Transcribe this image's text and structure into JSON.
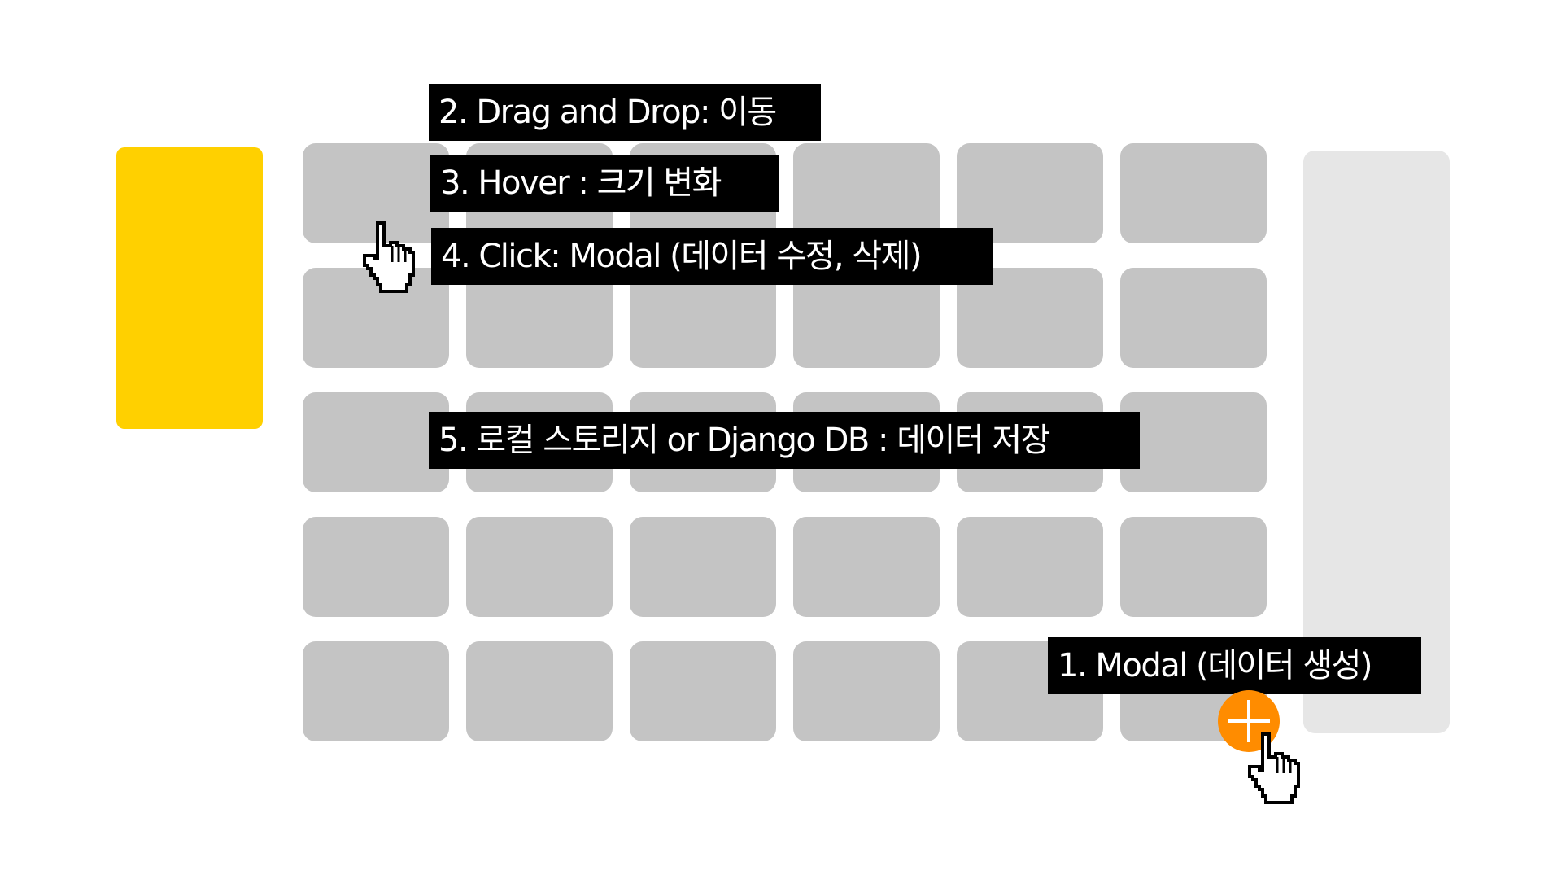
{
  "annotations": {
    "modal_create": "1. Modal (데이터 생성)",
    "drag_drop": "2. Drag and Drop: 이동",
    "hover": "3. Hover : 크기 변화",
    "click": "4. Click: Modal (데이터 수정, 삭제)",
    "storage": "5. 로컬 스토리지 or Django DB : 데이터 저장"
  },
  "grid": {
    "columns": 6,
    "rows": 5,
    "tile_color": "#c4c4c4"
  },
  "colors": {
    "yellow_card": "#ffd000",
    "side_panel": "#e6e6e6",
    "add_button": "#ff8c00",
    "note_background": "#000000",
    "note_text": "#ffffff"
  },
  "icons": {
    "add_button": "plus-icon",
    "pointer": "hand-pointer-icon"
  }
}
